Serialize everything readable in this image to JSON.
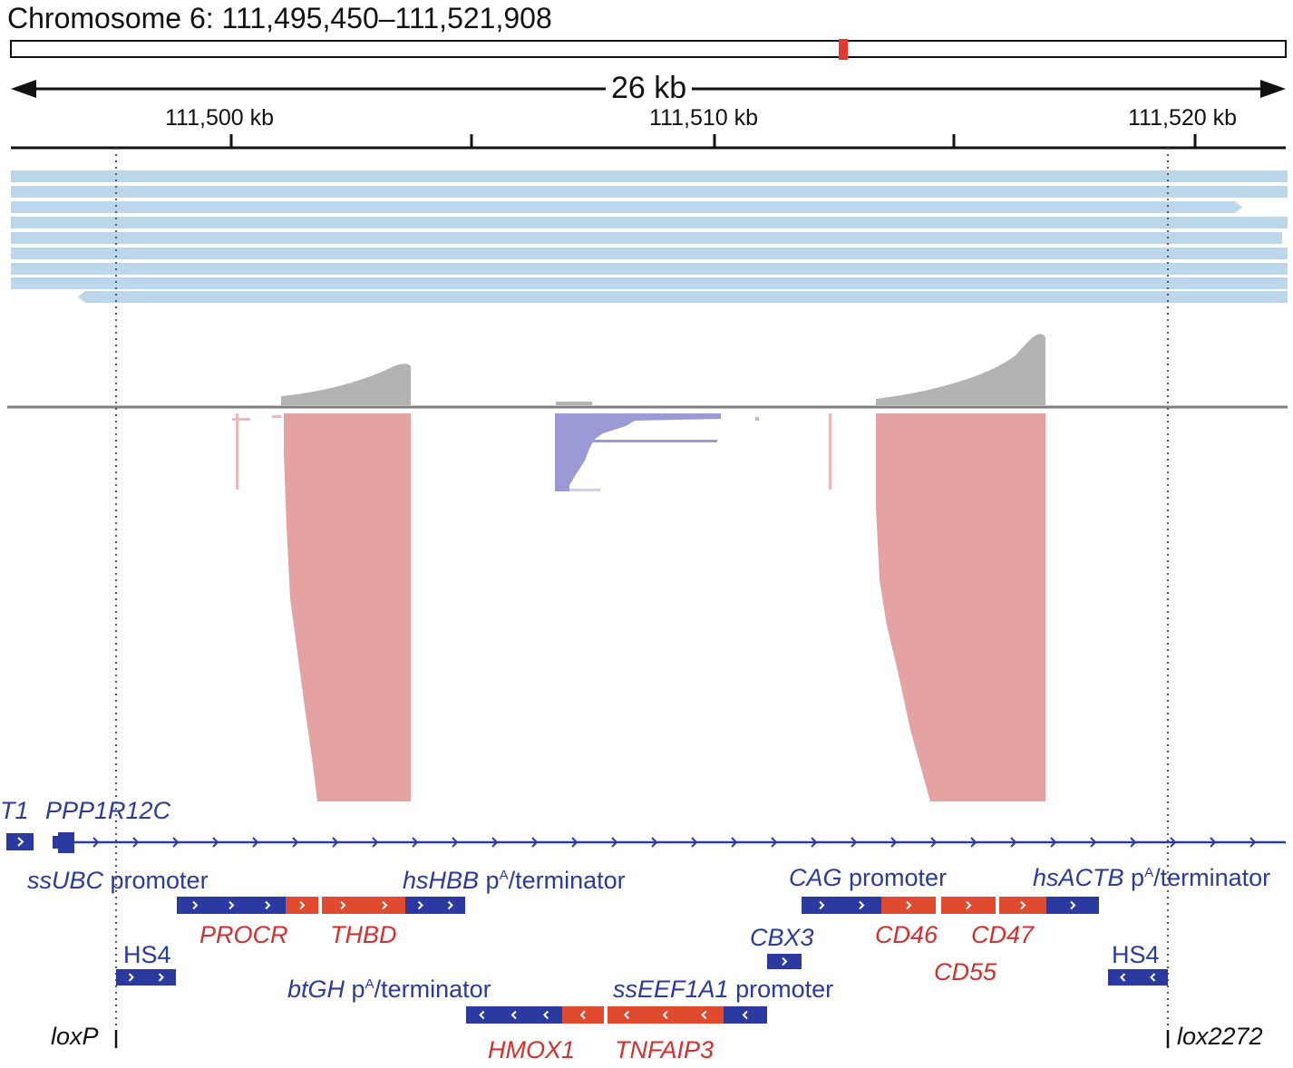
{
  "header": {
    "title": "Chromosome 6: 111,495,450–111,521,908",
    "span": "26 kb"
  },
  "ruler": {
    "ticks": [
      "111,500 kb",
      "111,510 kb",
      "111,520 kb"
    ]
  },
  "colors": {
    "gene_blue": "#2a3aa0",
    "gene_red": "#d42f2f",
    "read_blue": "#bcd6ea",
    "coverage_gray": "#b3b3b3",
    "forward_reads": "#e4a2a3",
    "reverse_reads": "#9b9ad6",
    "ideogram_marker": "#e23a30"
  },
  "genes": {
    "t1": "T1",
    "ppp1r12c": "PPP1R12C",
    "procr": "PROCR",
    "thbd": "THBD",
    "hmox1": "HMOX1",
    "tnfaip3": "TNFAIP3",
    "cbx3": "CBX3",
    "cd46": "CD46",
    "cd47": "CD47",
    "cd55": "CD55"
  },
  "elements": {
    "ssubc_name": "ssUBC",
    "ssubc_rest": " promoter",
    "hshbb_name": "hsHBB",
    "hshbb_p": " p",
    "hshbb_sup": "A",
    "hshbb_rest": "/terminator",
    "cag_name": "CAG",
    "cag_rest": " promoter",
    "hsactb_name": "hsACTB",
    "hsactb_p": " p",
    "hsactb_sup": "A",
    "hsactb_rest": "/terminator",
    "btgh_name": "btGH",
    "btgh_p": " p",
    "btgh_sup": "A",
    "btgh_rest": "/terminator",
    "sseef_name": "ssEEF1A1",
    "sseef_rest": " promoter",
    "hs4_left": "HS4",
    "hs4_right": "HS4"
  },
  "sites": {
    "loxp": "loxP",
    "lox2272": "lox2272"
  }
}
